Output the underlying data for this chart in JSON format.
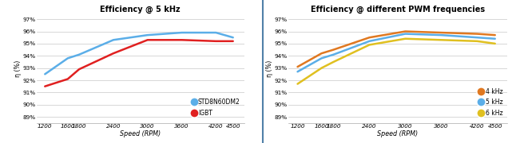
{
  "speed": [
    1200,
    1600,
    1800,
    2400,
    3000,
    3600,
    4200,
    4500
  ],
  "chart1": {
    "title": "Efficiency @ 5 kHz",
    "std8n60dm2": [
      92.5,
      93.8,
      94.1,
      95.3,
      95.7,
      95.9,
      95.9,
      95.5
    ],
    "igbt": [
      91.5,
      92.1,
      92.9,
      94.2,
      95.3,
      95.3,
      95.2,
      95.2
    ],
    "color_std": "#5baee8",
    "color_igbt": "#e02020",
    "legend_std": "STD8N60DM2",
    "legend_igbt": "IGBT"
  },
  "chart2": {
    "title": "Efficiency @ different PWM frequencies",
    "freq4": [
      93.1,
      94.2,
      94.5,
      95.5,
      96.0,
      95.9,
      95.8,
      95.7
    ],
    "freq5": [
      92.7,
      93.8,
      94.1,
      95.2,
      95.8,
      95.7,
      95.5,
      95.4
    ],
    "freq6": [
      91.7,
      93.0,
      93.5,
      94.9,
      95.4,
      95.3,
      95.2,
      95.0
    ],
    "color_4khz": "#e07820",
    "color_5khz": "#5baee8",
    "color_6khz": "#e0c020",
    "legend_4": "4 kHz",
    "legend_5": "5 kHz",
    "legend_6": "6 kHz"
  },
  "yticks": [
    89,
    90,
    91,
    92,
    93,
    94,
    95,
    96,
    97
  ],
  "ytick_labels": [
    "89%",
    "90%",
    "91%",
    "92%",
    "93%",
    "94%",
    "95%",
    "96%",
    "97%"
  ],
  "xtick_labels": [
    "1200",
    "1600",
    "1800",
    "2400",
    "3000",
    "3600",
    "4200",
    "4500"
  ],
  "ylabel": "η (%)",
  "xlabel": "Speed (RPM)",
  "ylim": [
    88.5,
    97.4
  ],
  "xlim_left": 1050,
  "xlim_right": 4700,
  "bg_color": "#ffffff",
  "grid_color": "#c8c8c8",
  "divider_color": "#5080a8",
  "title_fontsize": 7.0,
  "tick_fontsize": 5.2,
  "label_fontsize": 5.8,
  "legend_fontsize": 5.5,
  "line_width": 1.8
}
